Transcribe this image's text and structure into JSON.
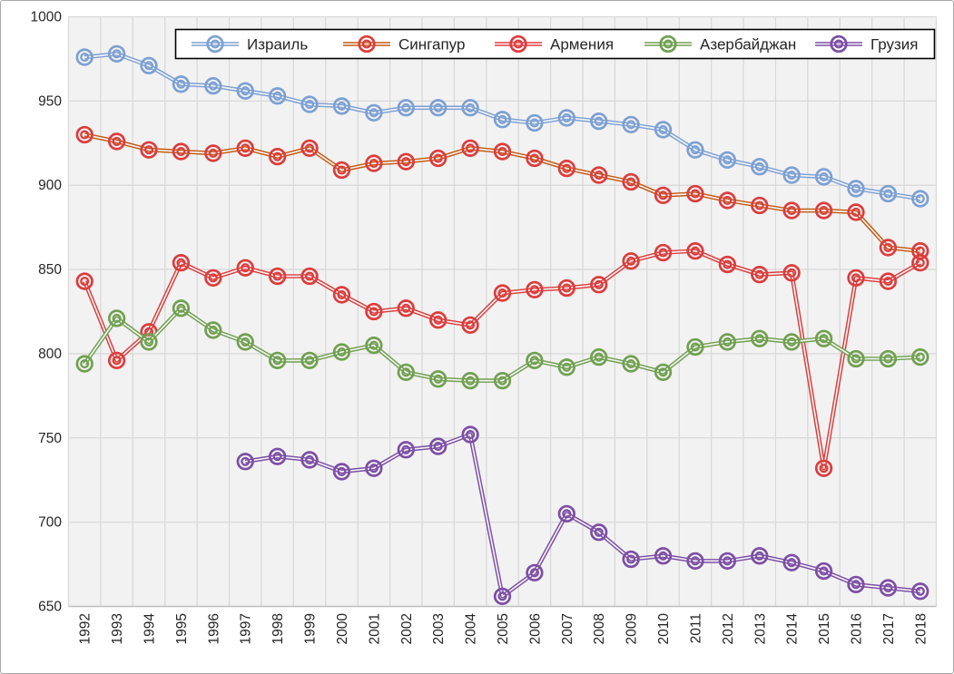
{
  "chart_data": {
    "type": "line",
    "title": "",
    "xlabel": "",
    "ylabel": "",
    "x": [
      1992,
      1993,
      1994,
      1995,
      1996,
      1997,
      1998,
      1999,
      2000,
      2001,
      2002,
      2003,
      2004,
      2005,
      2006,
      2007,
      2008,
      2009,
      2010,
      2011,
      2012,
      2013,
      2014,
      2015,
      2016,
      2017,
      2018
    ],
    "ylim": [
      650,
      1000
    ],
    "ytick_step": 50,
    "grid": true,
    "legend_position": "top-inside",
    "plot_bg": "#f2f2f2",
    "grid_color": "#d9d9d9",
    "axis_line_color": "#bfbfbf",
    "legend_border_color": "#000000",
    "legend_bg": "#ffffff",
    "series": [
      {
        "name": "Израиль",
        "line_color": "#7ca0d3",
        "marker_color": "#7ca0d3",
        "values": [
          976,
          978,
          971,
          960,
          959,
          956,
          953,
          948,
          947,
          943,
          946,
          946,
          946,
          939,
          937,
          940,
          938,
          936,
          933,
          921,
          915,
          911,
          906,
          905,
          898,
          895,
          892
        ]
      },
      {
        "name": "Сингапур",
        "line_color": "#c45911",
        "marker_color": "#dd3c3c",
        "values": [
          930,
          926,
          921,
          920,
          919,
          922,
          917,
          922,
          909,
          913,
          914,
          916,
          922,
          920,
          916,
          910,
          906,
          902,
          894,
          895,
          891,
          888,
          885,
          885,
          884,
          863,
          861
        ]
      },
      {
        "name": "Армения",
        "line_color": "#dd3c3c",
        "marker_color": "#dd3c3c",
        "values": [
          843,
          796,
          813,
          854,
          845,
          851,
          846,
          846,
          835,
          825,
          827,
          820,
          817,
          836,
          838,
          839,
          841,
          855,
          860,
          861,
          853,
          847,
          848,
          732,
          845,
          843,
          854
        ]
      },
      {
        "name": "Азербайджан",
        "line_color": "#70a050",
        "marker_color": "#70a050",
        "values": [
          794,
          821,
          807,
          827,
          814,
          807,
          796,
          796,
          801,
          805,
          789,
          785,
          784,
          784,
          796,
          792,
          798,
          794,
          789,
          804,
          807,
          809,
          807,
          809,
          797,
          797,
          798
        ]
      },
      {
        "name": "Грузия",
        "line_color": "#7c4ea5",
        "marker_color": "#7c4ea5",
        "values": [
          null,
          null,
          null,
          null,
          null,
          736,
          739,
          737,
          730,
          732,
          743,
          745,
          752,
          656,
          670,
          705,
          694,
          678,
          680,
          677,
          677,
          680,
          676,
          671,
          663,
          661,
          659
        ]
      }
    ]
  }
}
